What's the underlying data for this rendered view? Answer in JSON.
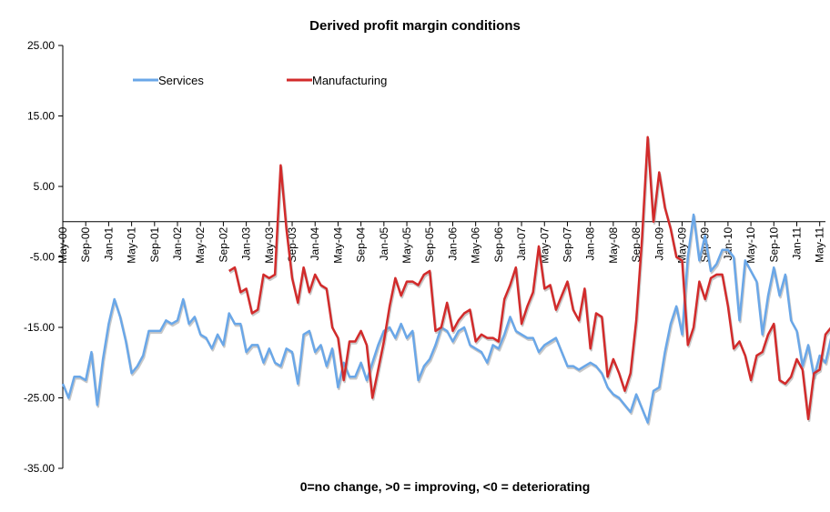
{
  "chart_data": {
    "type": "line",
    "title": "Derived profit margin conditions",
    "xlabel": "",
    "ylabel": "",
    "note": "0=no change, >0 = improving, <0 = deteriorating",
    "ylim": [
      -35,
      25
    ],
    "yticks": [
      25,
      15,
      5,
      -5,
      -15,
      -25,
      -35
    ],
    "ytick_labels": [
      "25.00",
      "15.00",
      "5.00",
      "-5.00",
      "-15.00",
      "-25.00",
      "-35.00"
    ],
    "legend_position": "top-left",
    "x_tick_labels": [
      "May-00",
      "Sep-00",
      "Jan-01",
      "May-01",
      "Sep-01",
      "Jan-02",
      "May-02",
      "Sep-02",
      "Jan-03",
      "May-03",
      "Sep-03",
      "Jan-04",
      "May-04",
      "Sep-04",
      "Jan-05",
      "May-05",
      "Sep-05",
      "Jan-06",
      "May-06",
      "Sep-06",
      "Jan-07",
      "May-07",
      "Sep-07",
      "Jan-08",
      "May-08",
      "Sep-08",
      "Jan-09",
      "May-09",
      "Sep-09",
      "Jan-10",
      "May-10",
      "Sep-10",
      "Jan-11",
      "May-11"
    ],
    "x_tick_months": [
      0,
      4,
      8,
      12,
      16,
      20,
      24,
      28,
      32,
      36,
      40,
      44,
      48,
      52,
      56,
      60,
      64,
      68,
      72,
      76,
      80,
      84,
      88,
      92,
      96,
      100,
      104,
      108,
      112,
      116,
      120,
      124,
      128,
      132
    ],
    "series": [
      {
        "name": "Services",
        "color": "#6aa7e8",
        "start_month": 0,
        "values": [
          -23,
          -25,
          -22,
          -22,
          -22.5,
          -18.5,
          -26,
          -19.5,
          -14.5,
          -11,
          -13.5,
          -17,
          -21.5,
          -20.5,
          -19,
          -15.5,
          -15.5,
          -15.5,
          -14,
          -14.5,
          -14,
          -11,
          -14.5,
          -13.5,
          -16,
          -16.5,
          -18,
          -16,
          -17.5,
          -13,
          -14.5,
          -14.5,
          -18.5,
          -17.5,
          -17.5,
          -20,
          -18,
          -20,
          -20.5,
          -18,
          -18.5,
          -23,
          -16,
          -15.5,
          -18.5,
          -17.5,
          -20.5,
          -18,
          -23.5,
          -20,
          -22,
          -22,
          -20,
          -22.5,
          -20,
          -17.5,
          -15.5,
          -15,
          -16.5,
          -14.5,
          -16.5,
          -15.5,
          -22.5,
          -20.5,
          -19.5,
          -17.5,
          -15,
          -15.5,
          -17,
          -15.5,
          -15,
          -17.5,
          -18,
          -18.5,
          -20,
          -17.5,
          -18,
          -16,
          -13.5,
          -15.5,
          -16,
          -16.5,
          -16.5,
          -18.5,
          -17.5,
          -17,
          -16.5,
          -18.5,
          -20.5,
          -20.5,
          -21,
          -20.5,
          -20,
          -20.5,
          -21.5,
          -23.5,
          -24.5,
          -25,
          -26,
          -27,
          -24.5,
          -26.5,
          -28.5,
          -24,
          -23.5,
          -18.5,
          -14.5,
          -12,
          -16,
          -5,
          1,
          -5.5,
          -2,
          -7,
          -6,
          -4,
          -4,
          -5,
          -14,
          -5.5,
          -7,
          -8.5,
          -16,
          -10.5,
          -6.5,
          -10.5,
          -7.5,
          -14,
          -15.5,
          -20.5,
          -17.5,
          -22,
          -19,
          -20,
          -16.5,
          -15
        ]
      },
      {
        "name": "Manufacturing",
        "color": "#d22b2b",
        "start_month": 29,
        "values": [
          -7,
          -6.5,
          -10,
          -9.5,
          -13,
          -12.5,
          -7.5,
          -8,
          -7.5,
          8,
          -1,
          -8,
          -11.5,
          -6.5,
          -10,
          -7.5,
          -9,
          -9.5,
          -15,
          -16.5,
          -22.5,
          -17,
          -17,
          -15.5,
          -17.5,
          -25,
          -21,
          -17,
          -12,
          -8,
          -10.5,
          -8.5,
          -8.5,
          -9,
          -7.5,
          -7,
          -15.5,
          -15,
          -11.5,
          -15.5,
          -14,
          -13,
          -12.5,
          -17,
          -16,
          -16.5,
          -16.5,
          -17,
          -11,
          -9,
          -6.5,
          -14.5,
          -12,
          -10,
          -3.5,
          -9.5,
          -9,
          -12.5,
          -10.5,
          -8.5,
          -12.5,
          -14,
          -9.5,
          -18,
          -13,
          -13.5,
          -22,
          -19.5,
          -21.5,
          -24,
          -21.5,
          -14,
          -2.5,
          12,
          0,
          7,
          2,
          -1,
          -5,
          -5.5,
          -17.5,
          -15,
          -8.5,
          -11,
          -8,
          -7.5,
          -7.5,
          -12,
          -18,
          -17,
          -19,
          -22.5,
          -19,
          -18.5,
          -16,
          -14.5,
          -22.5,
          -23,
          -22,
          -19.5,
          -21,
          -28,
          -21.5,
          -21,
          -16,
          -15
        ]
      }
    ]
  }
}
